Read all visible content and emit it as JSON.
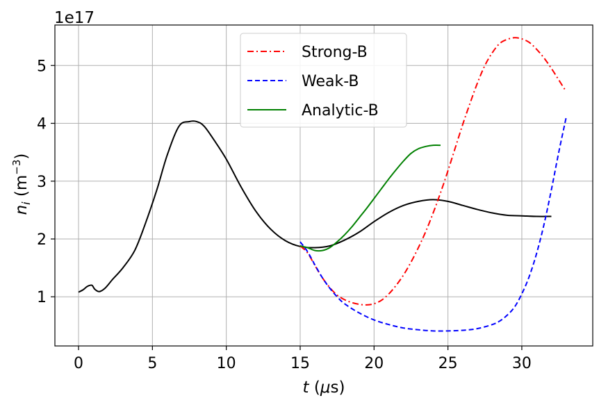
{
  "chart_data": {
    "type": "line",
    "title": "",
    "xlabel": "t (μs)",
    "ylabel": "n_i (m^-3)",
    "y_scale_label": "1e17",
    "xlim": [
      -1.6,
      34.8
    ],
    "ylim": [
      0.15,
      5.7
    ],
    "x_ticks": [
      0,
      5,
      10,
      15,
      20,
      25,
      30
    ],
    "y_ticks": [
      1,
      2,
      3,
      4,
      5
    ],
    "grid": true,
    "legend_position": "top-center",
    "series": [
      {
        "name": "",
        "color": "#000000",
        "style": "solid",
        "x": [
          0,
          0.3,
          0.6,
          0.9,
          1.1,
          1.4,
          1.8,
          2.3,
          3,
          3.8,
          4.5,
          5.3,
          6,
          6.8,
          7.5,
          8,
          8.5,
          9.2,
          10,
          11,
          12,
          13,
          14,
          15,
          16,
          17,
          18,
          19,
          20,
          21,
          22,
          23,
          24,
          25,
          26,
          27,
          28,
          29,
          30,
          31,
          32
        ],
        "y": [
          1.08,
          1.12,
          1.18,
          1.2,
          1.13,
          1.09,
          1.15,
          1.3,
          1.5,
          1.8,
          2.25,
          2.85,
          3.45,
          3.95,
          4.03,
          4.03,
          3.95,
          3.7,
          3.38,
          2.9,
          2.48,
          2.17,
          1.97,
          1.87,
          1.85,
          1.88,
          1.98,
          2.12,
          2.3,
          2.46,
          2.58,
          2.65,
          2.68,
          2.65,
          2.58,
          2.51,
          2.45,
          2.41,
          2.4,
          2.39,
          2.39
        ]
      },
      {
        "name": "Strong-B",
        "color": "#ff0000",
        "style": "dashdot",
        "x": [
          15,
          15.5,
          16,
          16.5,
          17,
          17.5,
          18,
          18.5,
          19,
          19.5,
          20,
          20.5,
          21,
          21.5,
          22,
          22.5,
          23,
          23.5,
          24,
          24.5,
          25,
          25.5,
          26,
          26.5,
          27,
          27.5,
          28,
          28.5,
          29,
          29.5,
          30,
          30.5,
          31,
          31.5,
          32,
          32.5,
          33
        ],
        "y": [
          1.88,
          1.76,
          1.54,
          1.33,
          1.16,
          1.03,
          0.95,
          0.9,
          0.87,
          0.86,
          0.88,
          0.94,
          1.05,
          1.2,
          1.38,
          1.6,
          1.85,
          2.13,
          2.45,
          2.8,
          3.18,
          3.58,
          3.98,
          4.35,
          4.7,
          5.0,
          5.22,
          5.38,
          5.45,
          5.48,
          5.46,
          5.4,
          5.28,
          5.13,
          4.95,
          4.75,
          4.55
        ]
      },
      {
        "name": "Weak-B",
        "color": "#0000ff",
        "style": "dashed",
        "x": [
          15,
          15.5,
          16,
          16.5,
          17,
          17.5,
          18,
          19,
          20,
          21,
          22,
          23,
          24,
          25,
          26,
          27,
          28,
          28.5,
          29,
          29.5,
          30,
          30.5,
          31,
          31.5,
          32,
          32.5,
          33
        ],
        "y": [
          1.95,
          1.78,
          1.55,
          1.33,
          1.15,
          1.0,
          0.88,
          0.72,
          0.6,
          0.52,
          0.46,
          0.43,
          0.41,
          0.41,
          0.42,
          0.45,
          0.52,
          0.58,
          0.68,
          0.82,
          1.05,
          1.35,
          1.75,
          2.25,
          2.85,
          3.5,
          4.1
        ]
      },
      {
        "name": "Analytic-B",
        "color": "#008000",
        "style": "solid",
        "x": [
          15,
          15.5,
          16,
          16.5,
          17,
          17.5,
          18,
          18.5,
          19,
          19.5,
          20,
          20.5,
          21,
          21.5,
          22,
          22.5,
          23,
          23.5,
          24,
          24.5
        ],
        "y": [
          1.88,
          1.85,
          1.8,
          1.8,
          1.85,
          1.95,
          2.07,
          2.21,
          2.37,
          2.53,
          2.7,
          2.87,
          3.04,
          3.2,
          3.35,
          3.48,
          3.56,
          3.6,
          3.62,
          3.62
        ]
      }
    ]
  }
}
